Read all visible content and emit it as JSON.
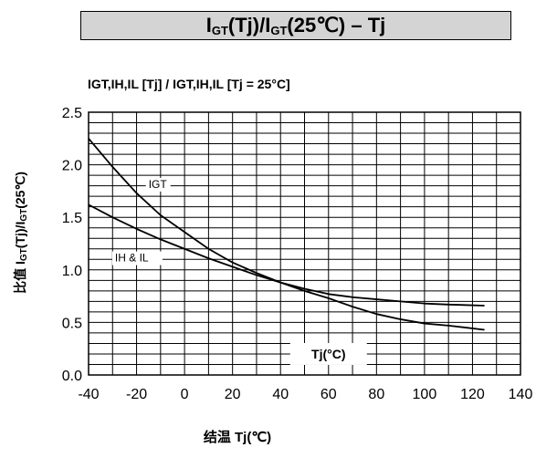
{
  "header": {
    "title_I1": "I",
    "title_sub1": "GT",
    "title_mid": "(Tj)/I",
    "title_sub2": "GT",
    "title_end": "(25℃) – Tj"
  },
  "chart_data": {
    "type": "line",
    "title": "IGT,IH,IL [Tj] / IGT,IH,IL [Tj = 25°C]",
    "ylabel_pre": "比值 I",
    "ylabel_sub1": "GT",
    "ylabel_mid": "(Tj)/I",
    "ylabel_sub2": "GT",
    "ylabel_end": "(25℃)",
    "xlabel": "结温 Tj(℃)",
    "inner_xlabel": "Tj(°C)",
    "xlim": [
      -40,
      140
    ],
    "ylim": [
      0,
      2.5
    ],
    "xticks": [
      "-40",
      "-20",
      "0",
      "20",
      "40",
      "60",
      "80",
      "100",
      "120",
      "140"
    ],
    "yticks": [
      "0.0",
      "0.5",
      "1.0",
      "1.5",
      "2.0",
      "2.5"
    ],
    "grid": true,
    "series": [
      {
        "name": "IGT",
        "x": [
          -40,
          -30,
          -20,
          -10,
          0,
          10,
          20,
          30,
          40,
          50,
          60,
          70,
          80,
          90,
          100,
          110,
          125
        ],
        "y": [
          2.25,
          1.98,
          1.73,
          1.52,
          1.36,
          1.2,
          1.07,
          0.97,
          0.88,
          0.8,
          0.73,
          0.65,
          0.58,
          0.53,
          0.49,
          0.47,
          0.43
        ]
      },
      {
        "name": "IH & IL",
        "x": [
          -40,
          -30,
          -20,
          -10,
          0,
          10,
          20,
          30,
          40,
          50,
          60,
          70,
          80,
          90,
          100,
          110,
          125
        ],
        "y": [
          1.62,
          1.5,
          1.39,
          1.29,
          1.2,
          1.11,
          1.03,
          0.95,
          0.88,
          0.82,
          0.77,
          0.74,
          0.72,
          0.7,
          0.68,
          0.67,
          0.66
        ]
      }
    ]
  }
}
